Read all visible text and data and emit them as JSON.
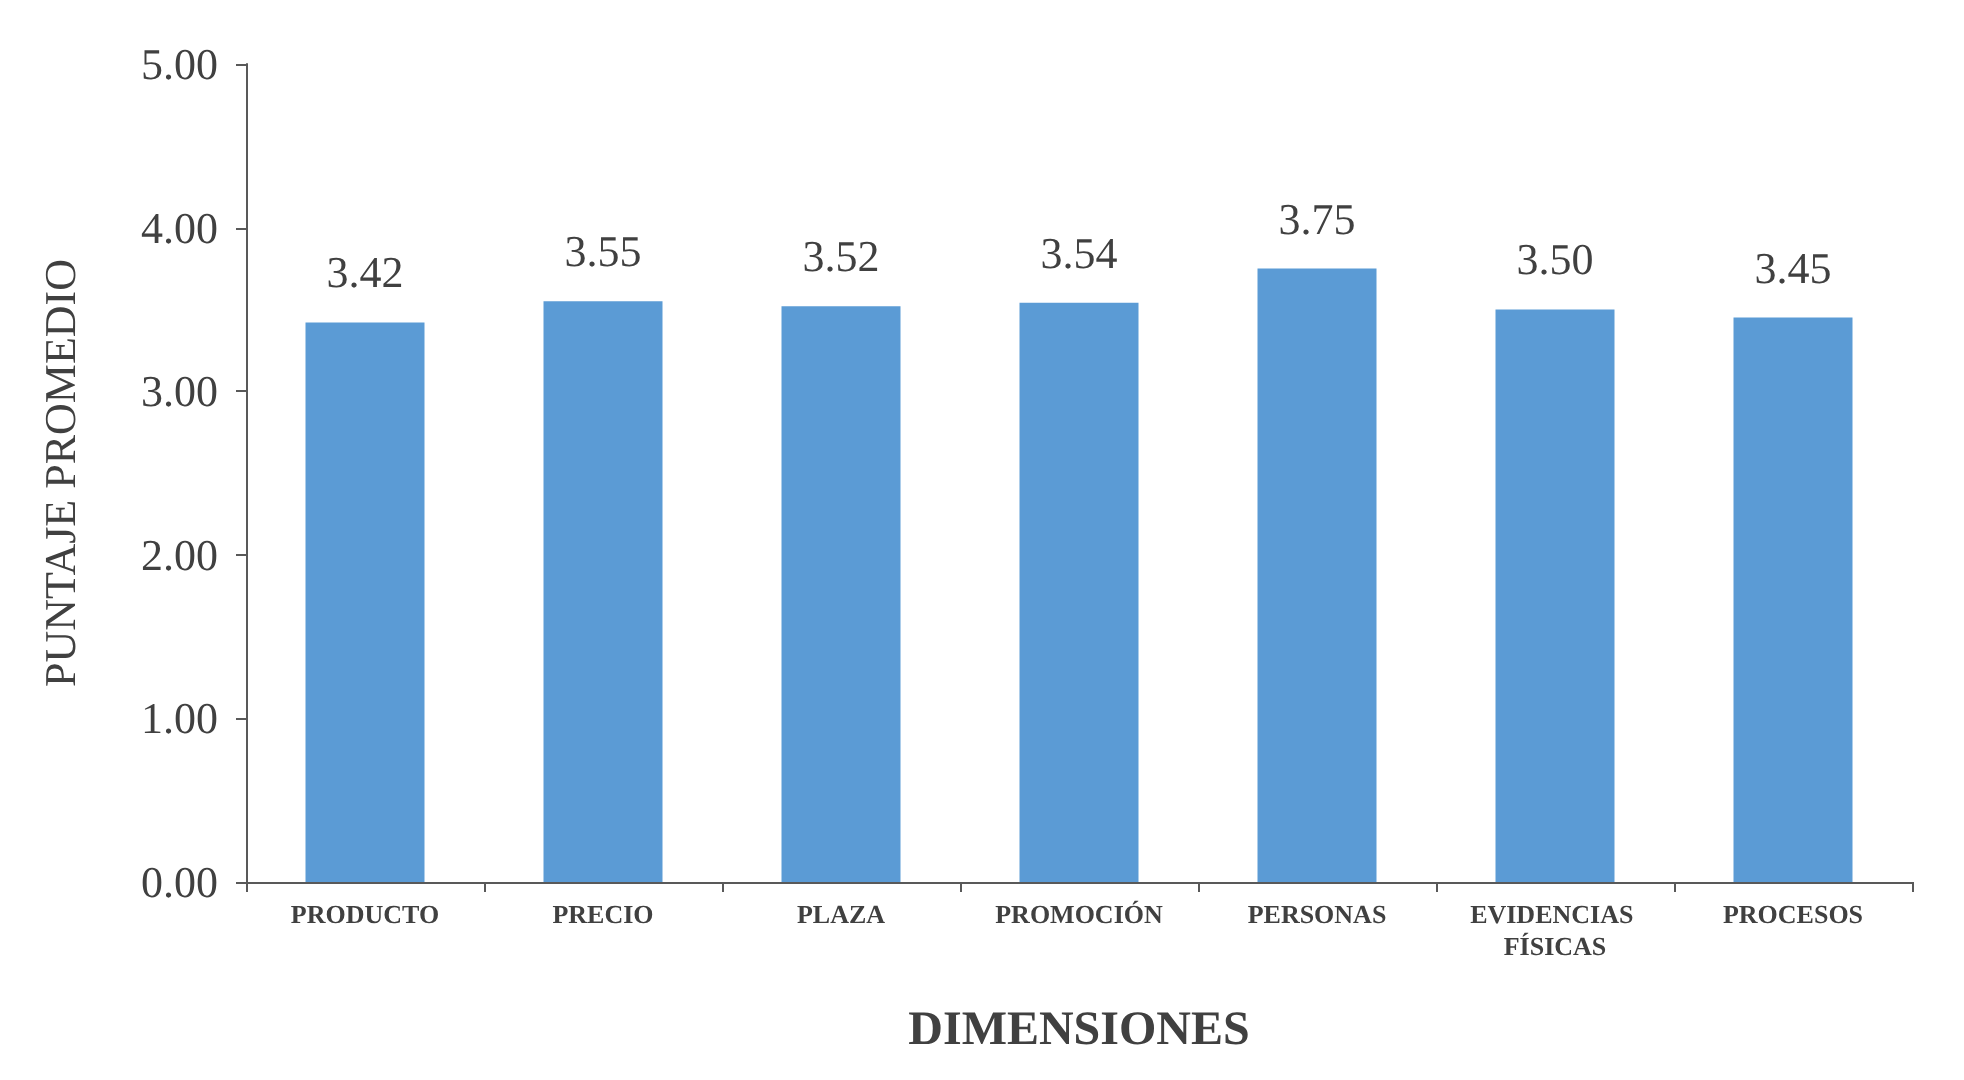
{
  "chart_data": {
    "type": "bar",
    "xlabel": "DIMENSIONES",
    "ylabel": "PUNTAJE PROMEDIO",
    "categories": [
      "PRODUCTO",
      "PRECIO",
      "PLAZA",
      "PROMOCIÓN",
      "PERSONAS",
      "EVIDENCIAS FÍSICAS",
      "PROCESOS"
    ],
    "values": [
      3.42,
      3.55,
      3.52,
      3.54,
      3.75,
      3.5,
      3.45
    ],
    "value_labels": [
      "3.42",
      "3.55",
      "3.52",
      "3.54",
      "3.75",
      "3.50",
      "3.45"
    ],
    "color": "#5b9bd5",
    "ylim": [
      0,
      5
    ],
    "yticks": [
      {
        "value": 0,
        "label": "0.00"
      },
      {
        "value": 1,
        "label": "1.00"
      },
      {
        "value": 2,
        "label": "2.00"
      },
      {
        "value": 3,
        "label": "3.00"
      },
      {
        "value": 4,
        "label": "4.00"
      },
      {
        "value": 5,
        "label": "5.00"
      }
    ],
    "grid": false
  }
}
